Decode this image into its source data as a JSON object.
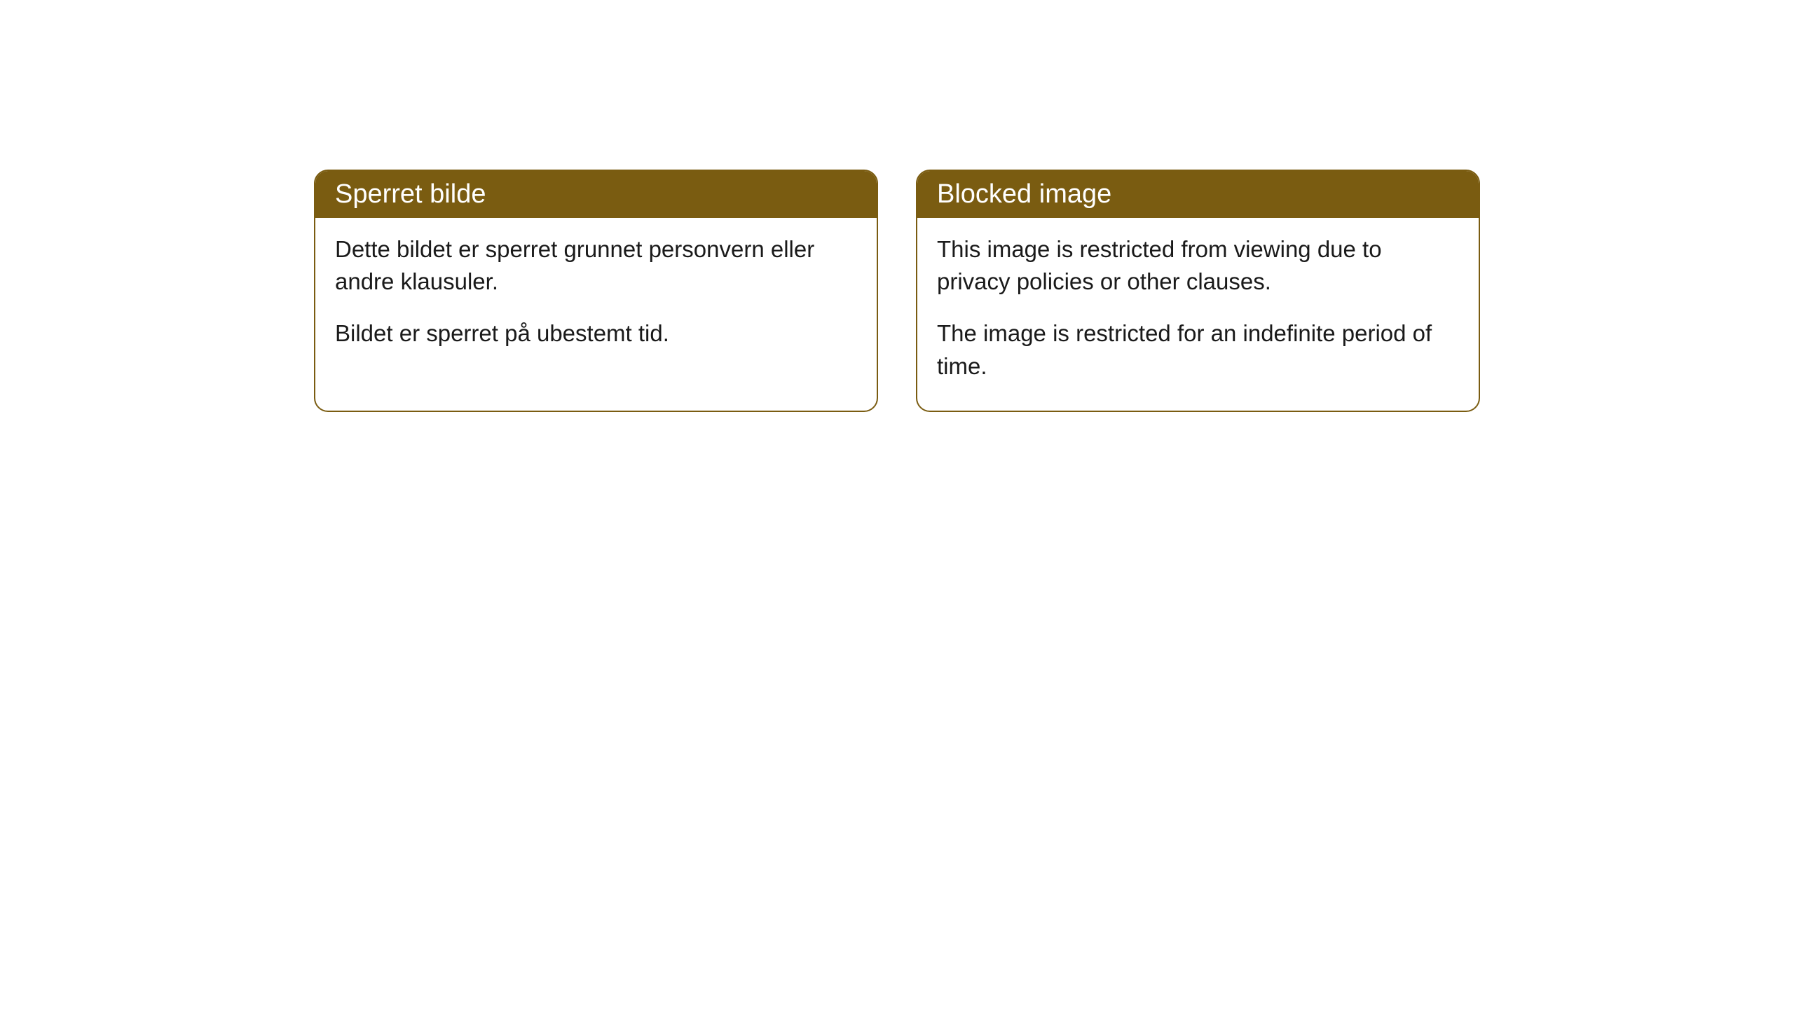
{
  "cards": [
    {
      "title": "Sperret bilde",
      "paragraph1": "Dette bildet er sperret grunnet personvern eller andre klausuler.",
      "paragraph2": "Bildet er sperret på ubestemt tid."
    },
    {
      "title": "Blocked image",
      "paragraph1": "This image is restricted from viewing due to privacy policies or other clauses.",
      "paragraph2": "The image is restricted for an indefinite period of time."
    }
  ],
  "style": {
    "header_background": "#7a5c11",
    "header_text_color": "#ffffff",
    "border_color": "#7a5c11",
    "body_text_color": "#1a1a1a",
    "card_background": "#ffffff",
    "border_radius": 20,
    "title_fontsize": 38,
    "body_fontsize": 33
  }
}
